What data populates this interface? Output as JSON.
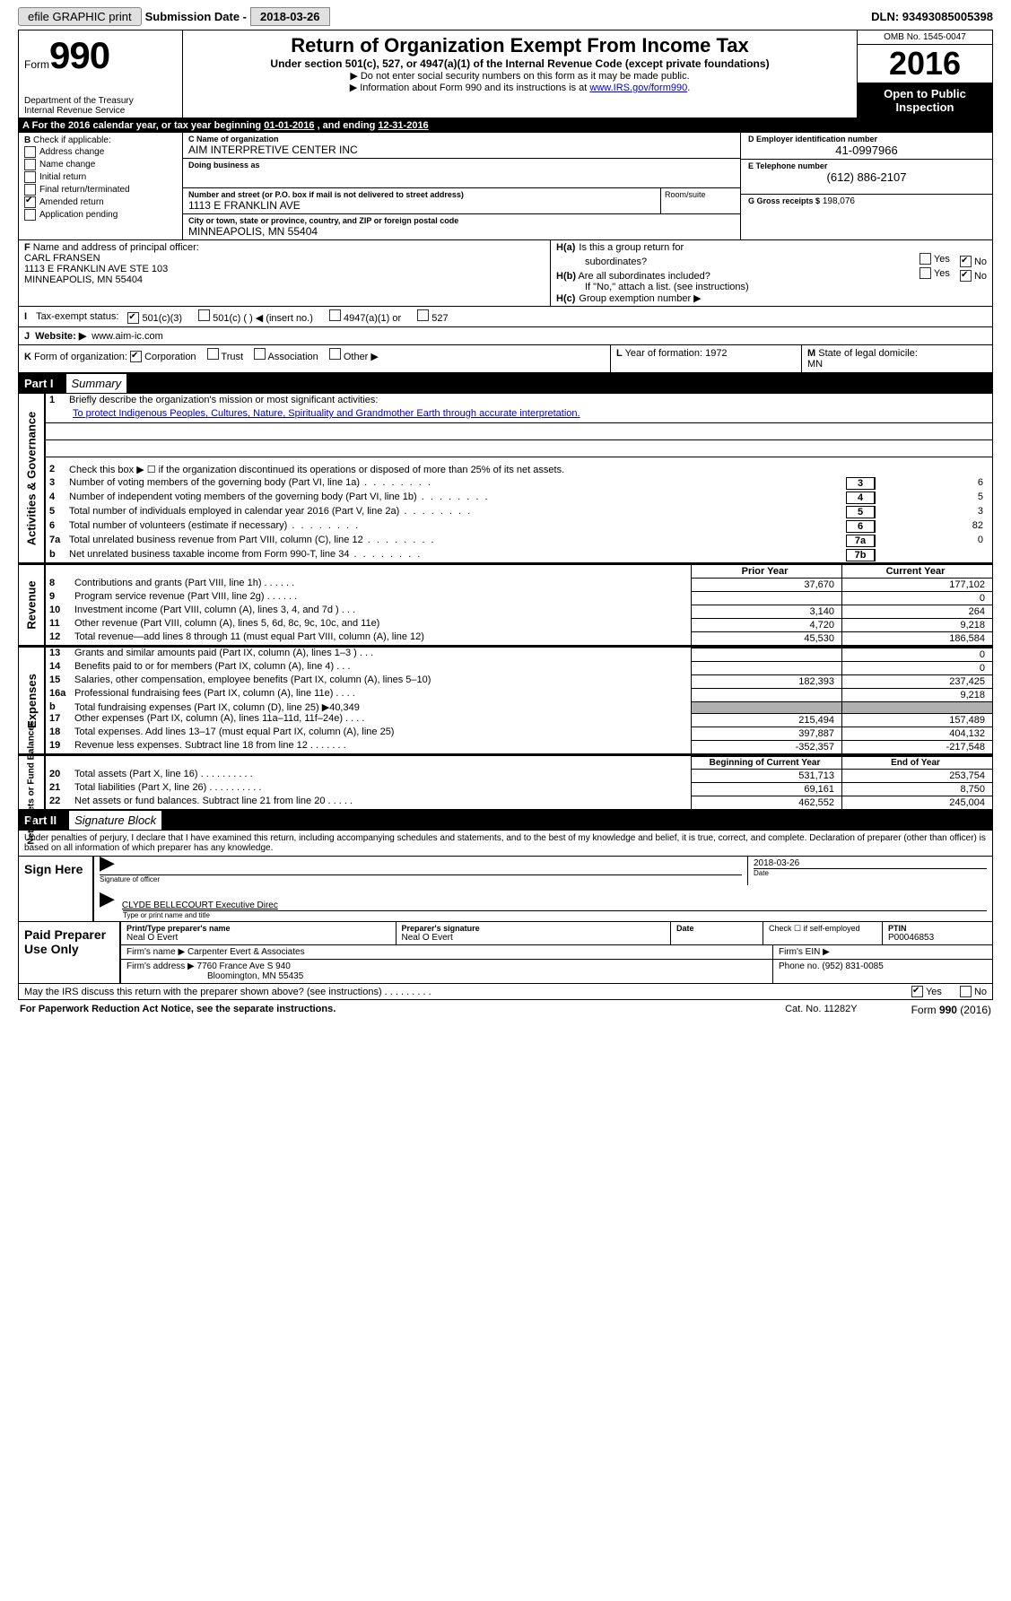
{
  "top": {
    "efile": "efile GRAPHIC print",
    "sub_label": "Submission Date -",
    "sub_date": "2018-03-26",
    "dln": "DLN: 93493085005398"
  },
  "header": {
    "form_word": "Form",
    "form_num": "990",
    "dept1": "Department of the Treasury",
    "dept2": "Internal Revenue Service",
    "title": "Return of Organization Exempt From Income Tax",
    "subtitle": "Under section 501(c), 527, or 4947(a)(1) of the Internal Revenue Code (except private foundations)",
    "note1": "▶ Do not enter social security numbers on this form as it may be made public.",
    "note2_pre": "▶ Information about Form 990 and its instructions is at ",
    "note2_link": "www.IRS.gov/form990",
    "note2_post": ".",
    "omb": "OMB No. 1545-0047",
    "year": "2016",
    "public1": "Open to Public",
    "public2": "Inspection"
  },
  "rowA": {
    "label": "A",
    "text_pre": "For the 2016 calendar year, or tax year beginning ",
    "begin": "01-01-2016",
    "mid": " , and ending ",
    "end": "12-31-2016"
  },
  "colB": {
    "label": "B",
    "check_label": "Check if applicable:",
    "items": [
      {
        "label": "Address change",
        "checked": false
      },
      {
        "label": "Name change",
        "checked": false
      },
      {
        "label": "Initial return",
        "checked": false
      },
      {
        "label": "Final return/terminated",
        "checked": false
      },
      {
        "label": "Amended return",
        "checked": true
      },
      {
        "label": "Application pending",
        "checked": false
      }
    ]
  },
  "colC": {
    "name_label": "C Name of organization",
    "name": "AIM INTERPRETIVE CENTER INC",
    "dba_label": "Doing business as",
    "dba": "",
    "street_label": "Number and street (or P.O. box if mail is not delivered to street address)",
    "room_label": "Room/suite",
    "street": "1113 E FRANKLIN AVE",
    "city_label": "City or town, state or province, country, and ZIP or foreign postal code",
    "city": "MINNEAPOLIS, MN  55404"
  },
  "colD": {
    "ein_label": "D Employer identification number",
    "ein": "41-0997966",
    "tel_label": "E Telephone number",
    "tel": "(612) 886-2107",
    "gross_label": "G Gross receipts $",
    "gross": "198,076"
  },
  "rowF": {
    "label": "F",
    "officer_label": "Name and address of principal officer:",
    "name": "CARL FRANSEN",
    "addr1": "1113 E FRANKLIN AVE STE 103",
    "addr2": "MINNEAPOLIS, MN  55404"
  },
  "rowH": {
    "a_label": "H(a)",
    "a_text": "Is this a group return for",
    "a_text2": "subordinates?",
    "a_yes": false,
    "a_no": true,
    "b_label": "H(b)",
    "b_text": "Are all subordinates included?",
    "b_yes": false,
    "b_no": true,
    "b_note": "If \"No,\" attach a list. (see instructions)",
    "c_label": "H(c)",
    "c_text": "Group exemption number ▶"
  },
  "rowI": {
    "label": "I",
    "text": "Tax-exempt status:",
    "opts": [
      "501(c)(3)",
      "501(c) (  ) ◀ (insert no.)",
      "4947(a)(1) or",
      "527"
    ],
    "checked": 0
  },
  "rowJ": {
    "label": "J",
    "text": "Website: ▶",
    "val": "www.aim-ic.com"
  },
  "rowK": {
    "label": "K",
    "text": "Form of organization:",
    "opts": [
      "Corporation",
      "Trust",
      "Association",
      "Other ▶"
    ],
    "checked": 0
  },
  "rowL": {
    "label": "L",
    "text": "Year of formation:",
    "val": "1972"
  },
  "rowM": {
    "label": "M",
    "text": "State of legal domicile:",
    "val": "MN"
  },
  "part1": {
    "tab": "Part I",
    "title": "Summary"
  },
  "gov": {
    "vtab": "Activities & Governance",
    "l1": "Briefly describe the organization's mission or most significant activities:",
    "mission": "To protect Indigenous Peoples, Cultures, Nature, Spirituality and Grandmother Earth through accurate interpretation.",
    "l2": "Check this box ▶ ☐  if the organization discontinued its operations or disposed of more than 25% of its net assets.",
    "rows": [
      {
        "n": "3",
        "desc": "Number of voting members of the governing body (Part VI, line 1a)",
        "box": "3",
        "val": "6"
      },
      {
        "n": "4",
        "desc": "Number of independent voting members of the governing body (Part VI, line 1b)",
        "box": "4",
        "val": "5"
      },
      {
        "n": "5",
        "desc": "Total number of individuals employed in calendar year 2016 (Part V, line 2a)",
        "box": "5",
        "val": "3"
      },
      {
        "n": "6",
        "desc": "Total number of volunteers (estimate if necessary)",
        "box": "6",
        "val": "82"
      },
      {
        "n": "7a",
        "desc": "Total unrelated business revenue from Part VIII, column (C), line 12",
        "box": "7a",
        "val": "0"
      },
      {
        "n": "b",
        "desc": "Net unrelated business taxable income from Form 990-T, line 34",
        "box": "7b",
        "val": ""
      }
    ]
  },
  "rev": {
    "vtab": "Revenue",
    "head_c1": "Prior Year",
    "head_c2": "Current Year",
    "rows": [
      {
        "n": "8",
        "desc": "Contributions and grants (Part VIII, line 1h)   .    .    .    .    .    .",
        "c1": "37,670",
        "c2": "177,102"
      },
      {
        "n": "9",
        "desc": "Program service revenue (Part VIII, line 2g)   .    .    .    .    .    .",
        "c1": "",
        "c2": "0"
      },
      {
        "n": "10",
        "desc": "Investment income (Part VIII, column (A), lines 3, 4, and 7d )   .    .    .",
        "c1": "3,140",
        "c2": "264"
      },
      {
        "n": "11",
        "desc": "Other revenue (Part VIII, column (A), lines 5, 6d, 8c, 9c, 10c, and 11e)",
        "c1": "4,720",
        "c2": "9,218"
      },
      {
        "n": "12",
        "desc": "Total revenue—add lines 8 through 11 (must equal Part VIII, column (A), line 12)",
        "c1": "45,530",
        "c2": "186,584"
      }
    ]
  },
  "exp": {
    "vtab": "Expenses",
    "rows": [
      {
        "n": "13",
        "desc": "Grants and similar amounts paid (Part IX, column (A), lines 1–3 )   .    .    .",
        "c1": "",
        "c2": "0"
      },
      {
        "n": "14",
        "desc": "Benefits paid to or for members (Part IX, column (A), line 4)   .    .    .",
        "c1": "",
        "c2": "0"
      },
      {
        "n": "15",
        "desc": "Salaries, other compensation, employee benefits (Part IX, column (A), lines 5–10)",
        "c1": "182,393",
        "c2": "237,425"
      },
      {
        "n": "16a",
        "desc": "Professional fundraising fees (Part IX, column (A), line 11e)   .    .    .    .",
        "c1": "",
        "c2": "9,218"
      },
      {
        "n": "b",
        "desc": "Total fundraising expenses (Part IX, column (D), line 25) ▶40,349",
        "c1": "gray",
        "c2": "gray"
      },
      {
        "n": "17",
        "desc": "Other expenses (Part IX, column (A), lines 11a–11d, 11f–24e)   .    .    .    .",
        "c1": "215,494",
        "c2": "157,489"
      },
      {
        "n": "18",
        "desc": "Total expenses. Add lines 13–17 (must equal Part IX, column (A), line 25)",
        "c1": "397,887",
        "c2": "404,132"
      },
      {
        "n": "19",
        "desc": "Revenue less expenses. Subtract line 18 from line 12   .    .    .    .    .    .    .",
        "c1": "-352,357",
        "c2": "-217,548"
      }
    ]
  },
  "net": {
    "vtab": "Net Assets or Fund Balances",
    "head_c1": "Beginning of Current Year",
    "head_c2": "End of Year",
    "rows": [
      {
        "n": "20",
        "desc": "Total assets (Part X, line 16)   .    .    .    .    .    .    .    .    .    .",
        "c1": "531,713",
        "c2": "253,754"
      },
      {
        "n": "21",
        "desc": "Total liabilities (Part X, line 26)   .    .    .    .    .    .    .    .    .    .",
        "c1": "69,161",
        "c2": "8,750"
      },
      {
        "n": "22",
        "desc": "Net assets or fund balances. Subtract line 21 from line 20   .    .    .    .    .",
        "c1": "462,552",
        "c2": "245,004"
      }
    ]
  },
  "part2": {
    "tab": "Part II",
    "title": "Signature Block"
  },
  "sig": {
    "perjury": "Under penalties of perjury, I declare that I have examined this return, including accompanying schedules and statements, and to the best of my knowledge and belief, it is true, correct, and complete. Declaration of preparer (other than officer) is based on all information of which preparer has any knowledge.",
    "sign_here": "Sign Here",
    "sig_officer_label": "Signature of officer",
    "date_label": "Date",
    "date_val": "2018-03-26",
    "name_title": "CLYDE BELLECOURT Executive Direc",
    "name_title_label": "Type or print name and title",
    "paid": "Paid Preparer Use Only",
    "prep_name_label": "Print/Type preparer's name",
    "prep_name": "Neal O Evert",
    "prep_sig_label": "Preparer's signature",
    "prep_sig": "Neal O Evert",
    "prep_date_label": "Date",
    "check_self": "Check ☐ if self-employed",
    "ptin_label": "PTIN",
    "ptin": "P00046853",
    "firm_name_label": "Firm's name    ▶",
    "firm_name": "Carpenter Evert & Associates",
    "firm_ein_label": "Firm's EIN ▶",
    "firm_addr_label": "Firm's address ▶",
    "firm_addr1": "7760 France Ave S 940",
    "firm_addr2": "Bloomington, MN  55435",
    "phone_label": "Phone no.",
    "phone": "(952) 831-0085"
  },
  "footer": {
    "discuss": "May the IRS discuss this return with the preparer shown above? (see instructions)   .    .    .    .    .    .    .    .    .",
    "yes_checked": true,
    "paperwork": "For Paperwork Reduction Act Notice, see the separate instructions.",
    "cat": "Cat. No. 11282Y",
    "form": "Form 990 (2016)"
  }
}
